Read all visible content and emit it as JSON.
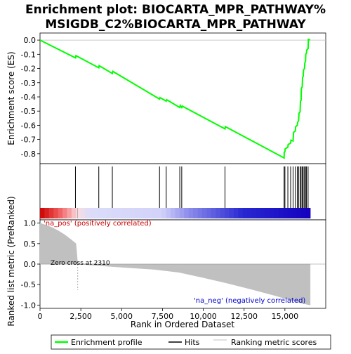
{
  "chart_data": {
    "type": "line",
    "title_line1": "Enrichment plot: BIOCARTA_MPR_PATHWAY%",
    "title_line2": "MSIGDB_C2%BIOCARTA_MPR_PATHWAY",
    "top_panel": {
      "ylabel": "Enrichment score (ES)",
      "ylim": [
        -0.87,
        0.05
      ],
      "yticks": [
        0.0,
        -0.1,
        -0.2,
        -0.3,
        -0.4,
        -0.5,
        -0.6,
        -0.7,
        -0.8
      ],
      "ytick_labels": [
        "0.0",
        "-0.1",
        "-0.2",
        "-0.3",
        "-0.4",
        "-0.5",
        "-0.6",
        "-0.7",
        "-0.8"
      ],
      "line_color": "#00ff00",
      "es_curve": [
        [
          0,
          0.0
        ],
        [
          2170,
          -0.125
        ],
        [
          2200,
          -0.11
        ],
        [
          3600,
          -0.195
        ],
        [
          3620,
          -0.18
        ],
        [
          4430,
          -0.235
        ],
        [
          4460,
          -0.22
        ],
        [
          7320,
          -0.415
        ],
        [
          7350,
          -0.405
        ],
        [
          7730,
          -0.43
        ],
        [
          7760,
          -0.42
        ],
        [
          8560,
          -0.475
        ],
        [
          8590,
          -0.46
        ],
        [
          8680,
          -0.475
        ],
        [
          8710,
          -0.465
        ],
        [
          11330,
          -0.625
        ],
        [
          11360,
          -0.61
        ],
        [
          14950,
          -0.83
        ],
        [
          14960,
          -0.79
        ],
        [
          15000,
          -0.785
        ],
        [
          15020,
          -0.765
        ],
        [
          15180,
          -0.755
        ],
        [
          15200,
          -0.735
        ],
        [
          15350,
          -0.725
        ],
        [
          15370,
          -0.705
        ],
        [
          15500,
          -0.71
        ],
        [
          15530,
          -0.65
        ],
        [
          15640,
          -0.64
        ],
        [
          15660,
          -0.61
        ],
        [
          15760,
          -0.6
        ],
        [
          15780,
          -0.58
        ],
        [
          15840,
          -0.565
        ],
        [
          15860,
          -0.515
        ],
        [
          15930,
          -0.505
        ],
        [
          15950,
          -0.43
        ],
        [
          15990,
          -0.425
        ],
        [
          16010,
          -0.34
        ],
        [
          16060,
          -0.33
        ],
        [
          16080,
          -0.265
        ],
        [
          16120,
          -0.255
        ],
        [
          16140,
          -0.21
        ],
        [
          16200,
          -0.2
        ],
        [
          16220,
          -0.16
        ],
        [
          16260,
          -0.15
        ],
        [
          16280,
          -0.1
        ],
        [
          16320,
          -0.09
        ],
        [
          16340,
          -0.07
        ],
        [
          16420,
          -0.06
        ],
        [
          16440,
          0.005
        ],
        [
          16550,
          0.0
        ]
      ]
    },
    "hits": [
      2170,
      3600,
      4430,
      7320,
      7730,
      8560,
      8680,
      11330,
      14950,
      15000,
      15180,
      15350,
      15500,
      15640,
      15760,
      15840,
      15930,
      15990,
      16060,
      16120,
      16200,
      16260,
      16320,
      16420
    ],
    "bottom_panel": {
      "ylabel": "Ranked list metric (PreRanked)",
      "ylim": [
        -1.08,
        1.08
      ],
      "yticks": [
        1.0,
        0.5,
        0.0,
        -0.5,
        -1.0
      ],
      "ytick_labels": [
        "1.0",
        "0.5",
        "0.0",
        "-0.5",
        "-1.0"
      ],
      "metric_profile": [
        [
          0,
          1.0
        ],
        [
          300,
          0.96
        ],
        [
          700,
          0.9
        ],
        [
          1100,
          0.82
        ],
        [
          1500,
          0.72
        ],
        [
          1900,
          0.6
        ],
        [
          2200,
          0.5
        ],
        [
          2310,
          0.0
        ],
        [
          3000,
          -0.02
        ],
        [
          4000,
          -0.05
        ],
        [
          5500,
          -0.09
        ],
        [
          7000,
          -0.13
        ],
        [
          8500,
          -0.2
        ],
        [
          10000,
          -0.33
        ],
        [
          11500,
          -0.47
        ],
        [
          13000,
          -0.62
        ],
        [
          14500,
          -0.78
        ],
        [
          15500,
          -0.9
        ],
        [
          16200,
          -0.97
        ],
        [
          16550,
          -1.0
        ]
      ],
      "pos_label": "'na_pos' (positively correlated)",
      "neg_label": "'na_neg' (negatively correlated)",
      "zero_cross_label": "Zero cross at 2310",
      "zero_cross": 2310
    },
    "xlabel": "Rank in Ordered Dataset",
    "xlim": [
      0,
      17500
    ],
    "xticks": [
      0,
      2500,
      5000,
      7500,
      10000,
      12500,
      15000
    ],
    "xtick_labels": [
      "0",
      "2,500",
      "5,000",
      "7,500",
      "10,000",
      "12,500",
      "15,000"
    ],
    "n_genes": 16550,
    "legend": {
      "entries": [
        {
          "label": "Enrichment profile",
          "color": "#00ff00"
        },
        {
          "label": "Hits",
          "color": "#000000"
        },
        {
          "label": "Ranking metric scores",
          "color": "#c0c0c0"
        }
      ]
    }
  }
}
